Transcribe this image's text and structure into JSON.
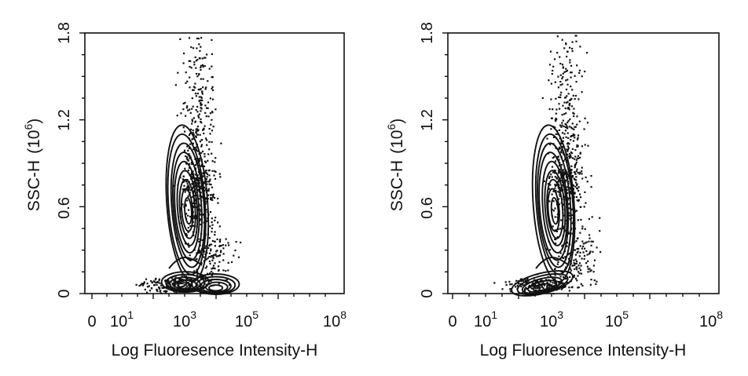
{
  "chart_data": [
    {
      "type": "contour",
      "xlabel": "Log Fluoresence Intensity-H",
      "ylabel": "SSC-H",
      "ylabel_exp": "6",
      "x_scale": "log",
      "x_ticks": [
        {
          "label": "0",
          "exp": ""
        },
        {
          "label": "10",
          "exp": "1"
        },
        {
          "label": "10",
          "exp": "3"
        },
        {
          "label": "10",
          "exp": "5"
        },
        {
          "label": "10",
          "exp": "8"
        }
      ],
      "y_ticks": [
        "0",
        "0.6",
        "1.2",
        "1.8"
      ],
      "ylim": [
        0,
        1.8
      ],
      "grid": false,
      "populations": [
        {
          "x_log": 3.0,
          "y": 0.65,
          "contour_levels": 9
        },
        {
          "x_log": 3.0,
          "y": 0.08,
          "contour_levels": 5
        },
        {
          "x_log": 4.0,
          "y": 0.06,
          "contour_levels": 5
        }
      ]
    },
    {
      "type": "contour",
      "xlabel": "Log Fluoresence Intensity-H",
      "ylabel": "SSC-H",
      "ylabel_exp": "6",
      "x_scale": "log",
      "x_ticks": [
        {
          "label": "0",
          "exp": ""
        },
        {
          "label": "10",
          "exp": "1"
        },
        {
          "label": "10",
          "exp": "3"
        },
        {
          "label": "10",
          "exp": "5"
        },
        {
          "label": "10",
          "exp": "8"
        }
      ],
      "y_ticks": [
        "0",
        "0.6",
        "1.2",
        "1.8"
      ],
      "ylim": [
        0,
        1.8
      ],
      "grid": false,
      "populations": [
        {
          "x_log": 3.0,
          "y": 0.65,
          "contour_levels": 9
        },
        {
          "x_log": 2.7,
          "y": 0.07,
          "contour_levels": 5
        }
      ]
    }
  ]
}
